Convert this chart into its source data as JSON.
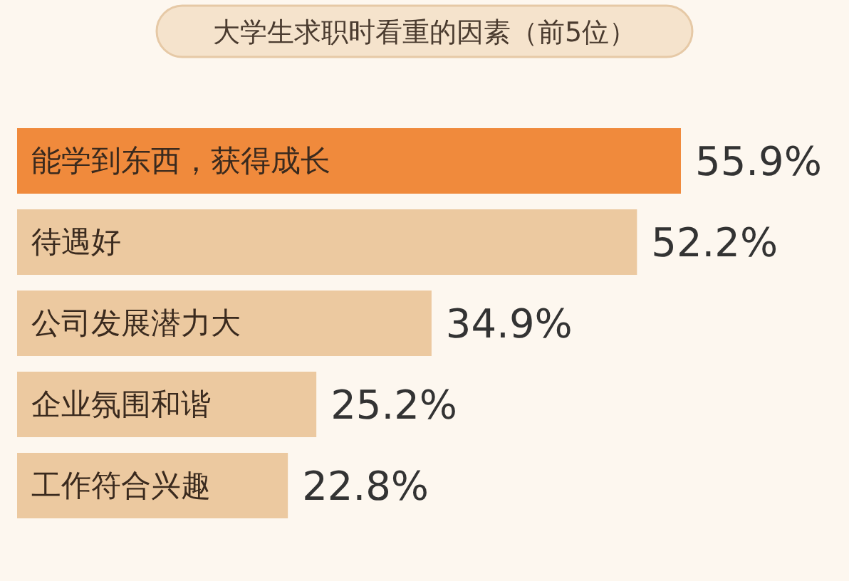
{
  "chart_data": {
    "type": "bar",
    "orientation": "horizontal",
    "title": "大学生求职时看重的因素（前5位）",
    "categories": [
      "能学到东西，获得成长",
      "待遇好",
      "公司发展潜力大",
      "企业氛围和谐",
      "工作符合兴趣"
    ],
    "values": [
      55.9,
      52.2,
      34.9,
      25.2,
      22.8
    ],
    "colors": [
      "#f08a3c",
      "#ecc9a0",
      "#ecc9a0",
      "#ecc9a0",
      "#ecc9a0"
    ],
    "value_labels": [
      "55.9%",
      "52.2%",
      "34.9%",
      "25.2%",
      "22.8%"
    ]
  }
}
